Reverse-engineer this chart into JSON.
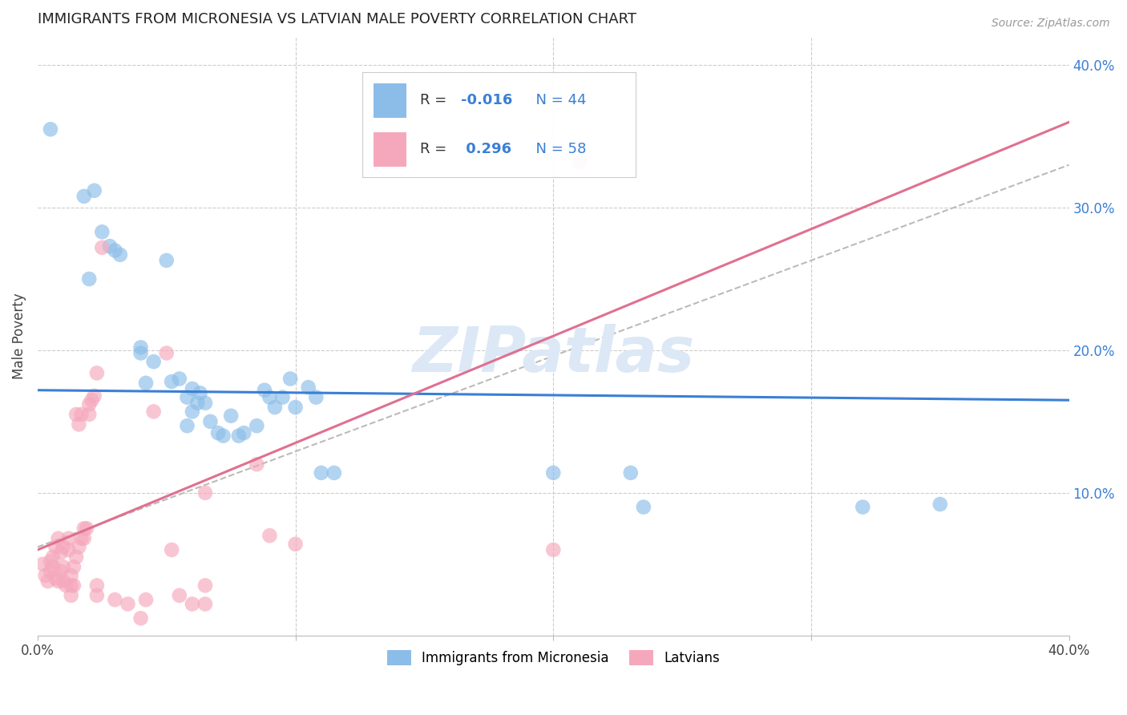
{
  "title": "IMMIGRANTS FROM MICRONESIA VS LATVIAN MALE POVERTY CORRELATION CHART",
  "source": "Source: ZipAtlas.com",
  "ylabel": "Male Poverty",
  "right_ytick_vals": [
    0.4,
    0.3,
    0.2,
    0.1
  ],
  "xmin": 0.0,
  "xmax": 0.4,
  "ymin": 0.0,
  "ymax": 0.42,
  "color_blue": "#8BBDE8",
  "color_pink": "#F5A8BC",
  "color_blue_line": "#3A7FD5",
  "color_pink_line": "#E07090",
  "watermark": "ZIPatlas",
  "blue_scatter": [
    [
      0.005,
      0.355
    ],
    [
      0.018,
      0.308
    ],
    [
      0.022,
      0.312
    ],
    [
      0.025,
      0.283
    ],
    [
      0.02,
      0.25
    ],
    [
      0.028,
      0.273
    ],
    [
      0.032,
      0.267
    ],
    [
      0.03,
      0.27
    ],
    [
      0.04,
      0.198
    ],
    [
      0.042,
      0.177
    ],
    [
      0.04,
      0.202
    ],
    [
      0.045,
      0.192
    ],
    [
      0.05,
      0.263
    ],
    [
      0.052,
      0.178
    ],
    [
      0.058,
      0.167
    ],
    [
      0.055,
      0.18
    ],
    [
      0.06,
      0.157
    ],
    [
      0.062,
      0.163
    ],
    [
      0.065,
      0.163
    ],
    [
      0.063,
      0.17
    ],
    [
      0.06,
      0.173
    ],
    [
      0.058,
      0.147
    ],
    [
      0.067,
      0.15
    ],
    [
      0.07,
      0.142
    ],
    [
      0.072,
      0.14
    ],
    [
      0.075,
      0.154
    ],
    [
      0.078,
      0.14
    ],
    [
      0.08,
      0.142
    ],
    [
      0.085,
      0.147
    ],
    [
      0.088,
      0.172
    ],
    [
      0.09,
      0.167
    ],
    [
      0.092,
      0.16
    ],
    [
      0.095,
      0.167
    ],
    [
      0.098,
      0.18
    ],
    [
      0.1,
      0.16
    ],
    [
      0.105,
      0.174
    ],
    [
      0.108,
      0.167
    ],
    [
      0.11,
      0.114
    ],
    [
      0.115,
      0.114
    ],
    [
      0.2,
      0.114
    ],
    [
      0.23,
      0.114
    ],
    [
      0.235,
      0.09
    ],
    [
      0.32,
      0.09
    ],
    [
      0.35,
      0.092
    ]
  ],
  "pink_scatter": [
    [
      0.002,
      0.05
    ],
    [
      0.003,
      0.042
    ],
    [
      0.004,
      0.038
    ],
    [
      0.005,
      0.045
    ],
    [
      0.005,
      0.052
    ],
    [
      0.006,
      0.048
    ],
    [
      0.006,
      0.055
    ],
    [
      0.007,
      0.04
    ],
    [
      0.007,
      0.062
    ],
    [
      0.008,
      0.038
    ],
    [
      0.008,
      0.068
    ],
    [
      0.009,
      0.045
    ],
    [
      0.009,
      0.058
    ],
    [
      0.01,
      0.038
    ],
    [
      0.01,
      0.048
    ],
    [
      0.01,
      0.062
    ],
    [
      0.011,
      0.035
    ],
    [
      0.012,
      0.06
    ],
    [
      0.012,
      0.068
    ],
    [
      0.013,
      0.042
    ],
    [
      0.013,
      0.035
    ],
    [
      0.013,
      0.028
    ],
    [
      0.014,
      0.048
    ],
    [
      0.014,
      0.035
    ],
    [
      0.015,
      0.055
    ],
    [
      0.015,
      0.155
    ],
    [
      0.016,
      0.062
    ],
    [
      0.016,
      0.148
    ],
    [
      0.017,
      0.068
    ],
    [
      0.017,
      0.155
    ],
    [
      0.018,
      0.075
    ],
    [
      0.018,
      0.068
    ],
    [
      0.019,
      0.075
    ],
    [
      0.02,
      0.162
    ],
    [
      0.02,
      0.155
    ],
    [
      0.021,
      0.165
    ],
    [
      0.022,
      0.168
    ],
    [
      0.023,
      0.035
    ],
    [
      0.023,
      0.028
    ],
    [
      0.025,
      0.272
    ],
    [
      0.03,
      0.025
    ],
    [
      0.035,
      0.022
    ],
    [
      0.04,
      0.012
    ],
    [
      0.042,
      0.025
    ],
    [
      0.045,
      0.157
    ],
    [
      0.05,
      0.198
    ],
    [
      0.052,
      0.06
    ],
    [
      0.055,
      0.028
    ],
    [
      0.06,
      0.022
    ],
    [
      0.065,
      0.022
    ],
    [
      0.065,
      0.035
    ],
    [
      0.2,
      0.06
    ],
    [
      0.023,
      0.184
    ],
    [
      0.065,
      0.1
    ],
    [
      0.085,
      0.12
    ],
    [
      0.09,
      0.07
    ],
    [
      0.21,
      0.332
    ],
    [
      0.1,
      0.064
    ]
  ],
  "blue_line_x": [
    0.0,
    0.4
  ],
  "blue_line_y": [
    0.172,
    0.165
  ],
  "pink_line_x": [
    0.0,
    0.4
  ],
  "pink_line_y": [
    0.06,
    0.36
  ],
  "dash_line_x": [
    0.0,
    0.4
  ],
  "dash_line_y": [
    0.062,
    0.33
  ]
}
